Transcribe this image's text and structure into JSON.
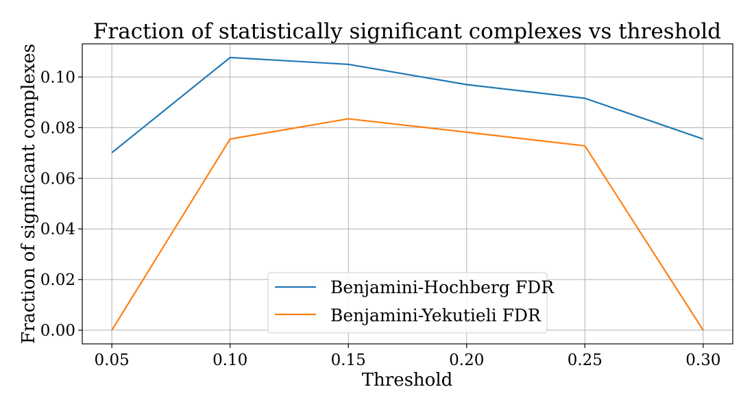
{
  "chart_data": {
    "type": "line",
    "title": "Fraction of statistically significant complexes vs threshold",
    "xlabel": "Threshold",
    "ylabel": "Fraction of significant complexes",
    "x": [
      0.05,
      0.1,
      0.15,
      0.2,
      0.25,
      0.3
    ],
    "x_tick_labels": [
      "0.05",
      "0.10",
      "0.15",
      "0.20",
      "0.25",
      "0.30"
    ],
    "y_tick_values": [
      0.0,
      0.02,
      0.04,
      0.06,
      0.08,
      0.1
    ],
    "y_tick_labels": [
      "0.00",
      "0.02",
      "0.04",
      "0.06",
      "0.08",
      "0.10"
    ],
    "xlim": [
      0.0375,
      0.3125
    ],
    "ylim": [
      -0.0054,
      0.1131
    ],
    "grid": true,
    "legend_position": "lower center",
    "series": [
      {
        "name": "Benjamini-Hochberg FDR",
        "color": "#1f77b4",
        "values": [
          0.0701,
          0.1077,
          0.105,
          0.097,
          0.0916,
          0.0755
        ]
      },
      {
        "name": "Benjamini-Yekutieli FDR",
        "color": "#ff7f0e",
        "values": [
          0.0,
          0.0755,
          0.0835,
          0.0782,
          0.0728,
          0.0
        ]
      }
    ]
  }
}
